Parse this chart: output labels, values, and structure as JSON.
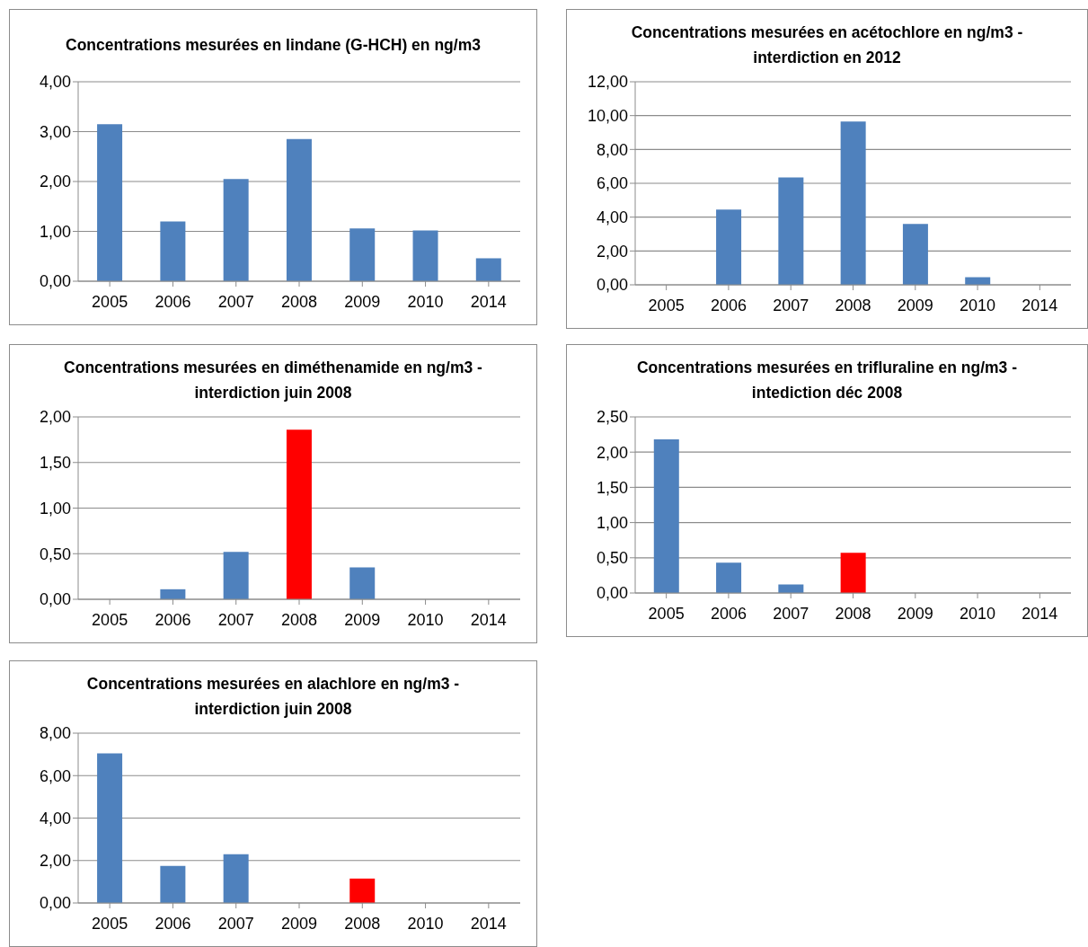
{
  "chart_data": [
    {
      "type": "bar",
      "title": "Concentrations mesurées en lindane (G-HCH) en ng/m3",
      "categories": [
        "2005",
        "2006",
        "2007",
        "2008",
        "2009",
        "2010",
        "2014"
      ],
      "values": [
        3.15,
        1.2,
        2.05,
        2.85,
        1.06,
        1.02,
        0.46
      ],
      "colors": [
        "#4f81bd",
        "#4f81bd",
        "#4f81bd",
        "#4f81bd",
        "#4f81bd",
        "#4f81bd",
        "#4f81bd"
      ],
      "ylim": [
        0,
        4
      ],
      "yticks": [
        {
          "value": 0,
          "label": "0,00"
        },
        {
          "value": 1,
          "label": "1,00"
        },
        {
          "value": 2,
          "label": "2,00"
        },
        {
          "value": 3,
          "label": "3,00"
        },
        {
          "value": 4,
          "label": "4,00"
        }
      ],
      "grid": "y",
      "legend": false
    },
    {
      "type": "bar",
      "title": "Concentrations mesurées en acétochlore en ng/m3 - interdiction en 2012",
      "categories": [
        "2005",
        "2006",
        "2007",
        "2008",
        "2009",
        "2010",
        "2014"
      ],
      "values": [
        null,
        4.45,
        6.35,
        9.65,
        3.6,
        0.45,
        null
      ],
      "colors": [
        "#4f81bd",
        "#4f81bd",
        "#4f81bd",
        "#4f81bd",
        "#4f81bd",
        "#4f81bd",
        "#4f81bd"
      ],
      "ylim": [
        0,
        12
      ],
      "yticks": [
        {
          "value": 0,
          "label": "0,00"
        },
        {
          "value": 2,
          "label": "2,00"
        },
        {
          "value": 4,
          "label": "4,00"
        },
        {
          "value": 6,
          "label": "6,00"
        },
        {
          "value": 8,
          "label": "8,00"
        },
        {
          "value": 10,
          "label": "10,00"
        },
        {
          "value": 12,
          "label": "12,00"
        }
      ],
      "grid": "y",
      "legend": false
    },
    {
      "type": "bar",
      "title": "Concentrations mesurées en diméthenamide en ng/m3 - interdiction juin 2008",
      "categories": [
        "2005",
        "2006",
        "2007",
        "2008",
        "2009",
        "2010",
        "2014"
      ],
      "values": [
        null,
        0.11,
        0.52,
        1.86,
        0.35,
        null,
        null
      ],
      "colors": [
        "#4f81bd",
        "#4f81bd",
        "#4f81bd",
        "#ff0000",
        "#4f81bd",
        "#4f81bd",
        "#4f81bd"
      ],
      "ylim": [
        0,
        2
      ],
      "yticks": [
        {
          "value": 0,
          "label": "0,00"
        },
        {
          "value": 0.5,
          "label": "0,50"
        },
        {
          "value": 1,
          "label": "1,00"
        },
        {
          "value": 1.5,
          "label": "1,50"
        },
        {
          "value": 2,
          "label": "2,00"
        }
      ],
      "grid": "y",
      "legend": false
    },
    {
      "type": "bar",
      "title": "Concentrations mesurées en trifluraline en ng/m3 - intediction déc 2008",
      "categories": [
        "2005",
        "2006",
        "2007",
        "2008",
        "2009",
        "2010",
        "2014"
      ],
      "values": [
        2.18,
        0.43,
        0.12,
        0.57,
        null,
        null,
        null
      ],
      "colors": [
        "#4f81bd",
        "#4f81bd",
        "#4f81bd",
        "#ff0000",
        "#4f81bd",
        "#4f81bd",
        "#4f81bd"
      ],
      "ylim": [
        0,
        2.5
      ],
      "yticks": [
        {
          "value": 0,
          "label": "0,00"
        },
        {
          "value": 0.5,
          "label": "0,50"
        },
        {
          "value": 1,
          "label": "1,00"
        },
        {
          "value": 1.5,
          "label": "1,50"
        },
        {
          "value": 2,
          "label": "2,00"
        },
        {
          "value": 2.5,
          "label": "2,50"
        }
      ],
      "grid": "y",
      "legend": false
    },
    {
      "type": "bar",
      "title": "Concentrations mesurées en alachlore en ng/m3 - interdiction juin 2008",
      "categories": [
        "2005",
        "2006",
        "2007",
        "2009",
        "2008",
        "2010",
        "2014"
      ],
      "values": [
        7.05,
        1.75,
        2.3,
        null,
        1.15,
        null,
        null
      ],
      "colors": [
        "#4f81bd",
        "#4f81bd",
        "#4f81bd",
        "#4f81bd",
        "#ff0000",
        "#4f81bd",
        "#4f81bd"
      ],
      "ylim": [
        0,
        8
      ],
      "yticks": [
        {
          "value": 0,
          "label": "0,00"
        },
        {
          "value": 2,
          "label": "2,00"
        },
        {
          "value": 4,
          "label": "4,00"
        },
        {
          "value": 6,
          "label": "6,00"
        },
        {
          "value": 8,
          "label": "8,00"
        }
      ],
      "grid": "y",
      "legend": false
    }
  ]
}
